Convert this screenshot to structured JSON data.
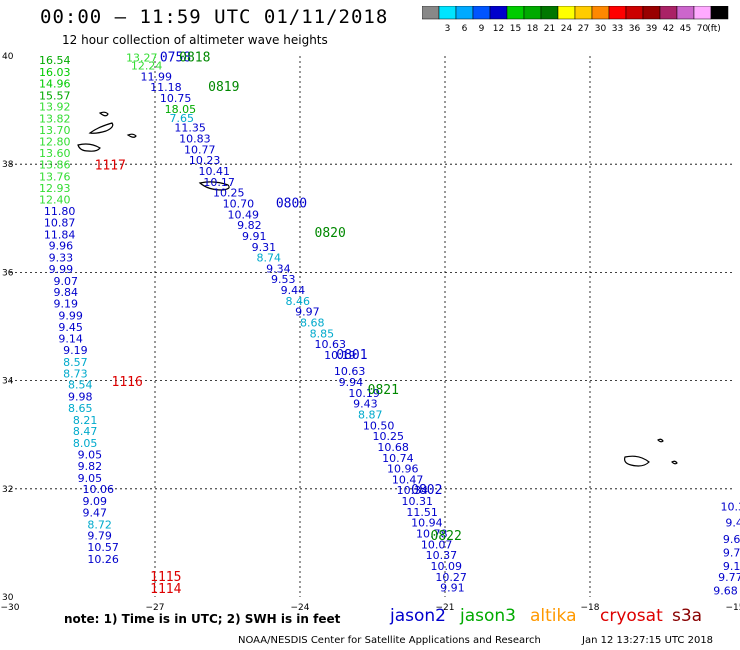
{
  "header": {
    "title": "00:00  –  11:59 UTC 01/11/2018",
    "subtitle": "12 hour collection of altimeter wave heights"
  },
  "colorbar": {
    "unit": "(ft)",
    "steps": [
      {
        "label": "",
        "color": "#888888"
      },
      {
        "label": "3",
        "color": "#00e4ff"
      },
      {
        "label": "6",
        "color": "#00aaff"
      },
      {
        "label": "9",
        "color": "#0055ff"
      },
      {
        "label": "12",
        "color": "#0000cc"
      },
      {
        "label": "15",
        "color": "#00cc00"
      },
      {
        "label": "18",
        "color": "#00aa00"
      },
      {
        "label": "21",
        "color": "#007700"
      },
      {
        "label": "24",
        "color": "#ffff00"
      },
      {
        "label": "27",
        "color": "#ffcc00"
      },
      {
        "label": "30",
        "color": "#ff8800"
      },
      {
        "label": "33",
        "color": "#ff0000"
      },
      {
        "label": "36",
        "color": "#cc0000"
      },
      {
        "label": "39",
        "color": "#990000"
      },
      {
        "label": "42",
        "color": "#aa2266"
      },
      {
        "label": "45",
        "color": "#cc66cc"
      },
      {
        "label": "70",
        "color": "#ffaaff"
      },
      {
        "label": "",
        "color": "#000000"
      }
    ]
  },
  "axes": {
    "lat_labels": [
      "40",
      "38",
      "36",
      "34",
      "32",
      "30"
    ],
    "lon_labels": [
      "−30",
      "−27",
      "−24",
      "−21",
      "−18",
      "−15"
    ],
    "lat_range": [
      30,
      40
    ],
    "lon_range": [
      -30,
      -15
    ]
  },
  "track_times": [
    {
      "text": "0758",
      "color": "#0000cc",
      "lon": -26.9,
      "lat": 39.9
    },
    {
      "text": "0818",
      "color": "#008800",
      "lon": -26.5,
      "lat": 39.9
    },
    {
      "text": "0819",
      "color": "#008800",
      "lon": -25.9,
      "lat": 39.35
    },
    {
      "text": "1117",
      "color": "#dd0000",
      "lon": -28.25,
      "lat": 37.9
    },
    {
      "text": "0800",
      "color": "#0000cc",
      "lon": -24.5,
      "lat": 37.2
    },
    {
      "text": "0820",
      "color": "#008800",
      "lon": -23.7,
      "lat": 36.65
    },
    {
      "text": "0801",
      "color": "#0000cc",
      "lon": -23.25,
      "lat": 34.4
    },
    {
      "text": "1116",
      "color": "#dd0000",
      "lon": -27.9,
      "lat": 33.9
    },
    {
      "text": "0821",
      "color": "#008800",
      "lon": -22.6,
      "lat": 33.75
    },
    {
      "text": "0802",
      "color": "#0000cc",
      "lon": -21.7,
      "lat": 31.9
    },
    {
      "text": "0822",
      "color": "#008800",
      "lon": -21.3,
      "lat": 31.05
    },
    {
      "text": "1115",
      "color": "#dd0000",
      "lon": -27.1,
      "lat": 30.3
    },
    {
      "text": "1114",
      "color": "#dd0000",
      "lon": -27.1,
      "lat": 30.07
    }
  ],
  "swh_points": [
    {
      "v": "16.54",
      "c": "#00aa00",
      "lon": -29.4,
      "lat": 39.85
    },
    {
      "v": "16.03",
      "c": "#00cc00",
      "lon": -29.4,
      "lat": 39.63
    },
    {
      "v": "14.96",
      "c": "#00cc00",
      "lon": -29.4,
      "lat": 39.42
    },
    {
      "v": "15.57",
      "c": "#00aa00",
      "lon": -29.4,
      "lat": 39.2
    },
    {
      "v": "13.92",
      "c": "#33dd33",
      "lon": -29.4,
      "lat": 38.99
    },
    {
      "v": "13.82",
      "c": "#33dd33",
      "lon": -29.4,
      "lat": 38.77
    },
    {
      "v": "13.70",
      "c": "#33dd33",
      "lon": -29.4,
      "lat": 38.56
    },
    {
      "v": "12.80",
      "c": "#33dd33",
      "lon": -29.4,
      "lat": 38.35
    },
    {
      "v": "13.60",
      "c": "#33dd33",
      "lon": -29.4,
      "lat": 38.13
    },
    {
      "v": "13.86",
      "c": "#33dd33",
      "lon": -29.4,
      "lat": 37.92
    },
    {
      "v": "13.76",
      "c": "#33dd33",
      "lon": -29.4,
      "lat": 37.7
    },
    {
      "v": "12.93",
      "c": "#33dd33",
      "lon": -29.4,
      "lat": 37.49
    },
    {
      "v": "12.40",
      "c": "#33dd33",
      "lon": -29.4,
      "lat": 37.27
    },
    {
      "v": "11.80",
      "c": "#0000cc",
      "lon": -29.3,
      "lat": 37.06
    },
    {
      "v": "10.87",
      "c": "#0000cc",
      "lon": -29.3,
      "lat": 36.85
    },
    {
      "v": "11.84",
      "c": "#0000cc",
      "lon": -29.3,
      "lat": 36.63
    },
    {
      "v": "9.96",
      "c": "#0000cc",
      "lon": -29.2,
      "lat": 36.42
    },
    {
      "v": "9.33",
      "c": "#0000cc",
      "lon": -29.2,
      "lat": 36.2
    },
    {
      "v": "9.99",
      "c": "#0000cc",
      "lon": -29.2,
      "lat": 35.99
    },
    {
      "v": "9.07",
      "c": "#0000cc",
      "lon": -29.1,
      "lat": 35.77
    },
    {
      "v": "9.84",
      "c": "#0000cc",
      "lon": -29.1,
      "lat": 35.56
    },
    {
      "v": "9.19",
      "c": "#0000cc",
      "lon": -29.1,
      "lat": 35.35
    },
    {
      "v": "9.99",
      "c": "#0000cc",
      "lon": -29.0,
      "lat": 35.13
    },
    {
      "v": "9.45",
      "c": "#0000cc",
      "lon": -29.0,
      "lat": 34.92
    },
    {
      "v": "9.14",
      "c": "#0000cc",
      "lon": -29.0,
      "lat": 34.7
    },
    {
      "v": "9.19",
      "c": "#0000cc",
      "lon": -28.9,
      "lat": 34.49
    },
    {
      "v": "8.57",
      "c": "#00aacc",
      "lon": -28.9,
      "lat": 34.27
    },
    {
      "v": "8.73",
      "c": "#00aacc",
      "lon": -28.9,
      "lat": 34.06
    },
    {
      "v": "8.54",
      "c": "#00aacc",
      "lon": -28.8,
      "lat": 33.85
    },
    {
      "v": "9.98",
      "c": "#0000cc",
      "lon": -28.8,
      "lat": 33.63
    },
    {
      "v": "8.65",
      "c": "#00aacc",
      "lon": -28.8,
      "lat": 33.42
    },
    {
      "v": "8.21",
      "c": "#00aacc",
      "lon": -28.7,
      "lat": 33.2
    },
    {
      "v": "8.47",
      "c": "#00aacc",
      "lon": -28.7,
      "lat": 32.99
    },
    {
      "v": "8.05",
      "c": "#00aacc",
      "lon": -28.7,
      "lat": 32.77
    },
    {
      "v": "9.05",
      "c": "#0000cc",
      "lon": -28.6,
      "lat": 32.56
    },
    {
      "v": "9.82",
      "c": "#0000cc",
      "lon": -28.6,
      "lat": 32.35
    },
    {
      "v": "9.05",
      "c": "#0000cc",
      "lon": -28.6,
      "lat": 32.13
    },
    {
      "v": "10.06",
      "c": "#0000cc",
      "lon": -28.5,
      "lat": 31.92
    },
    {
      "v": "9.09",
      "c": "#0000cc",
      "lon": -28.5,
      "lat": 31.7
    },
    {
      "v": "9.47",
      "c": "#0000cc",
      "lon": -28.5,
      "lat": 31.49
    },
    {
      "v": "8.72",
      "c": "#00aacc",
      "lon": -28.4,
      "lat": 31.27
    },
    {
      "v": "9.79",
      "c": "#0000cc",
      "lon": -28.4,
      "lat": 31.06
    },
    {
      "v": "10.57",
      "c": "#0000cc",
      "lon": -28.4,
      "lat": 30.85
    },
    {
      "v": "10.26",
      "c": "#0000cc",
      "lon": -28.4,
      "lat": 30.63
    },
    {
      "v": "13.27",
      "c": "#33dd33",
      "lon": -27.6,
      "lat": 39.9
    },
    {
      "v": "12.24",
      "c": "#33dd33",
      "lon": -27.5,
      "lat": 39.75
    },
    {
      "v": "11.99",
      "c": "#0000cc",
      "lon": -27.3,
      "lat": 39.55
    },
    {
      "v": "11.18",
      "c": "#0000cc",
      "lon": -27.1,
      "lat": 39.35
    },
    {
      "v": "10.75",
      "c": "#0000cc",
      "lon": -26.9,
      "lat": 39.15
    },
    {
      "v": "18.05",
      "c": "#00aa00",
      "lon": -26.8,
      "lat": 38.95
    },
    {
      "v": "7.65",
      "c": "#00aacc",
      "lon": -26.7,
      "lat": 38.78
    },
    {
      "v": "11.35",
      "c": "#0000cc",
      "lon": -26.6,
      "lat": 38.6
    },
    {
      "v": "10.83",
      "c": "#0000cc",
      "lon": -26.5,
      "lat": 38.4
    },
    {
      "v": "10.77",
      "c": "#0000cc",
      "lon": -26.4,
      "lat": 38.2
    },
    {
      "v": "10.23",
      "c": "#0000cc",
      "lon": -26.3,
      "lat": 38.0
    },
    {
      "v": "10.41",
      "c": "#0000cc",
      "lon": -26.1,
      "lat": 37.8
    },
    {
      "v": "10.17",
      "c": "#0000cc",
      "lon": -26.0,
      "lat": 37.6
    },
    {
      "v": "10.25",
      "c": "#0000cc",
      "lon": -25.8,
      "lat": 37.4
    },
    {
      "v": "10.70",
      "c": "#0000cc",
      "lon": -25.6,
      "lat": 37.2
    },
    {
      "v": "10.49",
      "c": "#0000cc",
      "lon": -25.5,
      "lat": 37.0
    },
    {
      "v": "9.82",
      "c": "#0000cc",
      "lon": -25.3,
      "lat": 36.8
    },
    {
      "v": "9.91",
      "c": "#0000cc",
      "lon": -25.2,
      "lat": 36.6
    },
    {
      "v": "9.31",
      "c": "#0000cc",
      "lon": -25.0,
      "lat": 36.4
    },
    {
      "v": "8.74",
      "c": "#00aacc",
      "lon": -24.9,
      "lat": 36.2
    },
    {
      "v": "9.34",
      "c": "#0000cc",
      "lon": -24.7,
      "lat": 36.0
    },
    {
      "v": "9.53",
      "c": "#0000cc",
      "lon": -24.6,
      "lat": 35.8
    },
    {
      "v": "9.44",
      "c": "#0000cc",
      "lon": -24.4,
      "lat": 35.6
    },
    {
      "v": "8.46",
      "c": "#00aacc",
      "lon": -24.3,
      "lat": 35.4
    },
    {
      "v": "9.97",
      "c": "#0000cc",
      "lon": -24.1,
      "lat": 35.2
    },
    {
      "v": "8.68",
      "c": "#00aacc",
      "lon": -24.0,
      "lat": 35.0
    },
    {
      "v": "8.85",
      "c": "#00aacc",
      "lon": -23.8,
      "lat": 34.8
    },
    {
      "v": "10.63",
      "c": "#0000cc",
      "lon": -23.7,
      "lat": 34.6
    },
    {
      "v": "10.19",
      "c": "#0000cc",
      "lon": -23.5,
      "lat": 34.4
    },
    {
      "v": "10.63",
      "c": "#0000cc",
      "lon": -23.3,
      "lat": 34.1
    },
    {
      "v": "9.94",
      "c": "#0000cc",
      "lon": -23.2,
      "lat": 33.9
    },
    {
      "v": "10.19",
      "c": "#0000cc",
      "lon": -23.0,
      "lat": 33.7
    },
    {
      "v": "9.43",
      "c": "#0000cc",
      "lon": -22.9,
      "lat": 33.5
    },
    {
      "v": "8.87",
      "c": "#00aacc",
      "lon": -22.8,
      "lat": 33.3
    },
    {
      "v": "10.50",
      "c": "#0000cc",
      "lon": -22.7,
      "lat": 33.1
    },
    {
      "v": "10.25",
      "c": "#0000cc",
      "lon": -22.5,
      "lat": 32.9
    },
    {
      "v": "10.68",
      "c": "#0000cc",
      "lon": -22.4,
      "lat": 32.7
    },
    {
      "v": "10.74",
      "c": "#0000cc",
      "lon": -22.3,
      "lat": 32.5
    },
    {
      "v": "10.96",
      "c": "#0000cc",
      "lon": -22.2,
      "lat": 32.3
    },
    {
      "v": "10.47",
      "c": "#0000cc",
      "lon": -22.1,
      "lat": 32.1
    },
    {
      "v": "10.34",
      "c": "#0000cc",
      "lon": -22.0,
      "lat": 31.9
    },
    {
      "v": "10.31",
      "c": "#0000cc",
      "lon": -21.9,
      "lat": 31.7
    },
    {
      "v": "11.51",
      "c": "#0000cc",
      "lon": -21.8,
      "lat": 31.5
    },
    {
      "v": "10.94",
      "c": "#0000cc",
      "lon": -21.7,
      "lat": 31.3
    },
    {
      "v": "10.78",
      "c": "#0000cc",
      "lon": -21.6,
      "lat": 31.1
    },
    {
      "v": "10.07",
      "c": "#0000cc",
      "lon": -21.5,
      "lat": 30.9
    },
    {
      "v": "10.37",
      "c": "#0000cc",
      "lon": -21.4,
      "lat": 30.7
    },
    {
      "v": "10.09",
      "c": "#0000cc",
      "lon": -21.3,
      "lat": 30.5
    },
    {
      "v": "10.27",
      "c": "#0000cc",
      "lon": -21.2,
      "lat": 30.3
    },
    {
      "v": "9.91",
      "c": "#0000cc",
      "lon": -21.1,
      "lat": 30.1
    },
    {
      "v": "10.30",
      "c": "#0000cc",
      "lon": -15.3,
      "lat": 31.6
    },
    {
      "v": "9.4",
      "c": "#0000cc",
      "lon": -15.2,
      "lat": 31.3
    },
    {
      "v": "9.63",
      "c": "#0000cc",
      "lon": -15.25,
      "lat": 31.0
    },
    {
      "v": "9.77",
      "c": "#0000cc",
      "lon": -15.25,
      "lat": 30.75
    },
    {
      "v": "9.19",
      "c": "#0000cc",
      "lon": -15.25,
      "lat": 30.5
    },
    {
      "v": "9.77",
      "c": "#0000cc",
      "lon": -15.35,
      "lat": 30.3
    },
    {
      "v": "9.68",
      "c": "#0000cc",
      "lon": -15.45,
      "lat": 30.05
    }
  ],
  "footer": {
    "note": "note:  1) Time is in UTC;  2) SWH is in feet",
    "satellites": [
      {
        "name": "jason2",
        "color": "#0000cc"
      },
      {
        "name": "jason3",
        "color": "#00aa00"
      },
      {
        "name": "altika",
        "color": "#ff9900"
      },
      {
        "name": "cryosat",
        "color": "#dd0000"
      },
      {
        "name": "s3a",
        "color": "#880000"
      }
    ],
    "credit": "NOAA/NESDIS Center for Satellite Applications and Research",
    "timestamp": "Jan 12 13:27:15 UTC 2018"
  }
}
